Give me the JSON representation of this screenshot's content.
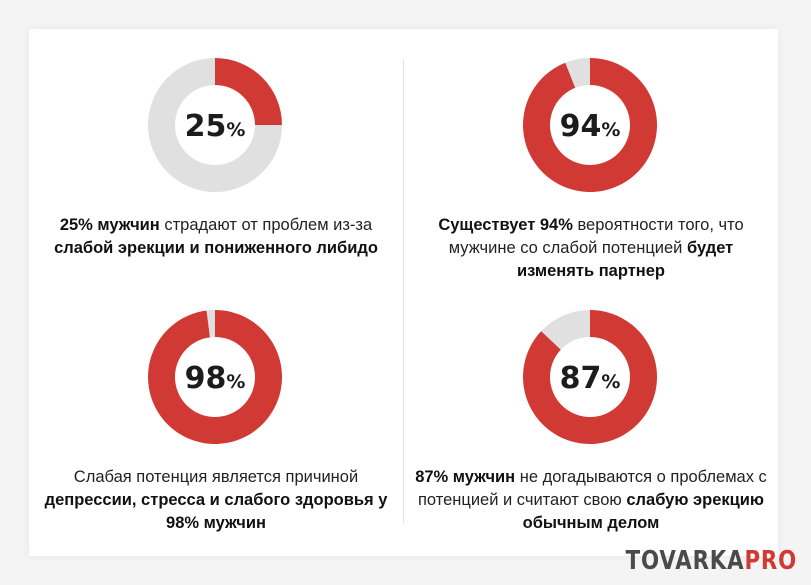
{
  "colors": {
    "accent": "#d13a34",
    "remainder": "#e0e0e0",
    "background": "#f4f4f4",
    "card": "#ffffff"
  },
  "chart_data": [
    {
      "type": "pie",
      "value": 25,
      "center_label": "25",
      "center_unit": "%",
      "caption": [
        {
          "text": "25% мужчин",
          "bold": true
        },
        {
          "text": " страдают от проблем из-за ",
          "bold": false
        },
        {
          "text": "слабой эрекции и пониженного либидо",
          "bold": true
        }
      ]
    },
    {
      "type": "pie",
      "value": 94,
      "center_label": "94",
      "center_unit": "%",
      "caption": [
        {
          "text": "Существует 94%",
          "bold": true
        },
        {
          "text": " вероятности того, что мужчине со слабой потенцией ",
          "bold": false
        },
        {
          "text": "будет изменять партнер",
          "bold": true
        }
      ]
    },
    {
      "type": "pie",
      "value": 98,
      "center_label": "98",
      "center_unit": "%",
      "caption": [
        {
          "text": "Слабая потенция является причиной ",
          "bold": false
        },
        {
          "text": "депрессии, стресса и слабого здоровья у 98% мужчин",
          "bold": true
        }
      ]
    },
    {
      "type": "pie",
      "value": 87,
      "center_label": "87",
      "center_unit": "%",
      "caption": [
        {
          "text": "87% мужчин",
          "bold": true
        },
        {
          "text": " не догадываются о проблемах с потенцией и считают свою ",
          "bold": false
        },
        {
          "text": "слабую эрекцию обычным делом",
          "bold": true
        }
      ]
    }
  ],
  "logo": {
    "main": "TOVARKA",
    "accent": "PRO"
  }
}
